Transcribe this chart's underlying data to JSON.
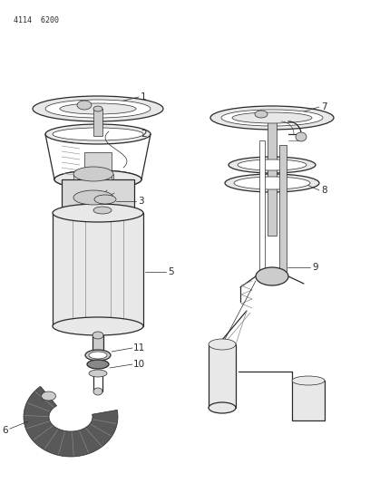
{
  "title": "4114  6200",
  "bg_color": "#ffffff",
  "line_color": "#2a2a2a",
  "label_color": "#222222",
  "figsize": [
    4.08,
    5.33
  ],
  "dpi": 100,
  "lw_main": 0.9,
  "lw_thin": 0.5,
  "gray_light": "#e8e8e8",
  "gray_mid": "#cccccc",
  "gray_dark": "#888888",
  "gray_darkest": "#444444"
}
